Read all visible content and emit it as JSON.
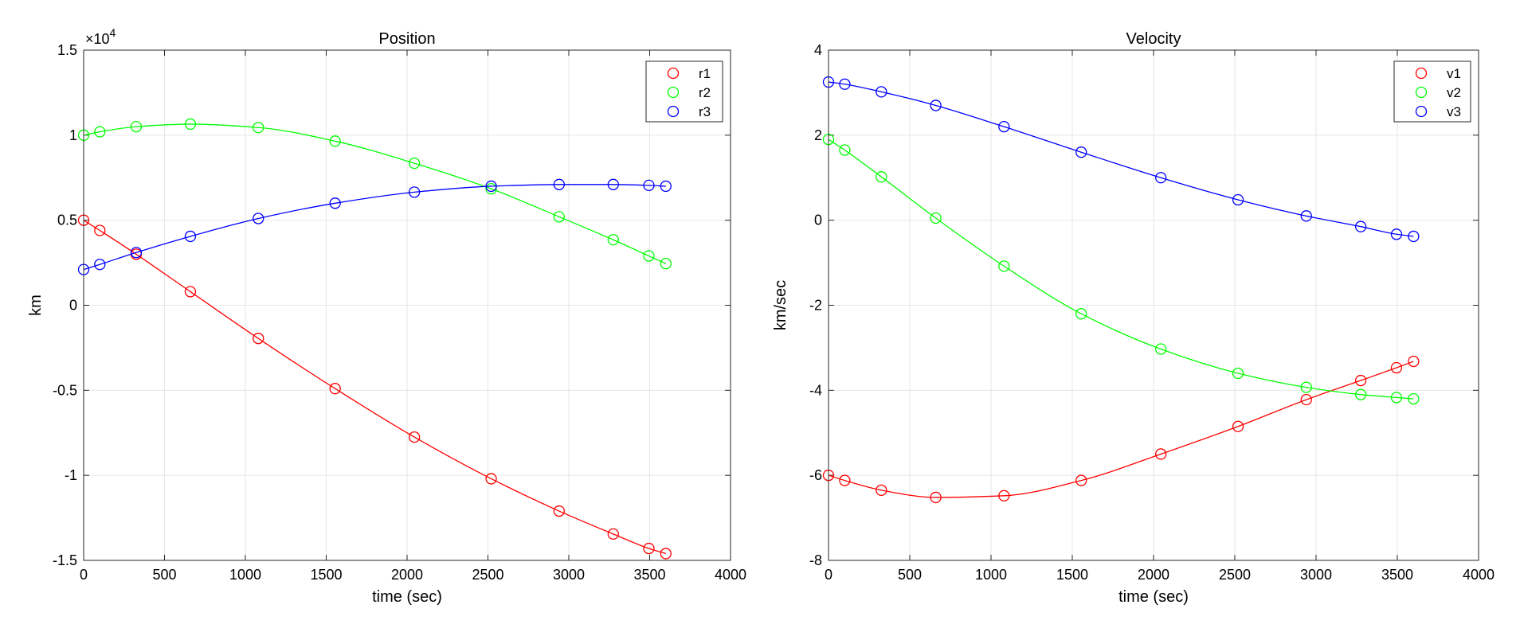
{
  "chart_data": [
    {
      "type": "line",
      "title": "Position",
      "xlabel": "time (sec)",
      "ylabel": "km",
      "exponent_label": "×10",
      "exponent_power": "4",
      "xlim": [
        0,
        4000
      ],
      "ylim": [
        -15000,
        15000
      ],
      "xticks": [
        0,
        500,
        1000,
        1500,
        2000,
        2500,
        3000,
        3500,
        4000
      ],
      "xtick_labels": [
        "0",
        "500",
        "1000",
        "1500",
        "2000",
        "2500",
        "3000",
        "3500",
        "4000"
      ],
      "yticks": [
        -15000,
        -10000,
        -5000,
        0,
        5000,
        10000,
        15000
      ],
      "ytick_labels": [
        "-1.5",
        "-1",
        "-0.5",
        "0",
        "0.5",
        "1",
        "1.5"
      ],
      "grid": true,
      "legend": "top-right",
      "markers_x": [
        0,
        100,
        325,
        660,
        1080,
        1555,
        2045,
        2520,
        2940,
        3275,
        3495,
        3600
      ],
      "series": [
        {
          "name": "r1",
          "color": "#ff0000",
          "x": [
            0,
            100,
            325,
            660,
            1080,
            1555,
            2045,
            2520,
            2940,
            3275,
            3495,
            3600
          ],
          "y": [
            5000,
            4400,
            3000,
            800,
            -1950,
            -4900,
            -7750,
            -10200,
            -12100,
            -13450,
            -14300,
            -14600
          ]
        },
        {
          "name": "r2",
          "color": "#00ff00",
          "x": [
            0,
            100,
            325,
            660,
            1080,
            1555,
            2045,
            2520,
            2940,
            3275,
            3495,
            3600
          ],
          "y": [
            10000,
            10200,
            10500,
            10650,
            10450,
            9650,
            8350,
            6850,
            5200,
            3850,
            2900,
            2450
          ]
        },
        {
          "name": "r3",
          "color": "#0000ff",
          "x": [
            0,
            100,
            325,
            660,
            1080,
            1555,
            2045,
            2520,
            2940,
            3275,
            3495,
            3600
          ],
          "y": [
            2100,
            2400,
            3100,
            4050,
            5100,
            6000,
            6650,
            7000,
            7100,
            7100,
            7050,
            7000
          ]
        }
      ]
    },
    {
      "type": "line",
      "title": "Velocity",
      "xlabel": "time (sec)",
      "ylabel": "km/sec",
      "xlim": [
        0,
        4000
      ],
      "ylim": [
        -8,
        4
      ],
      "xticks": [
        0,
        500,
        1000,
        1500,
        2000,
        2500,
        3000,
        3500,
        4000
      ],
      "xtick_labels": [
        "0",
        "500",
        "1000",
        "1500",
        "2000",
        "2500",
        "3000",
        "3500",
        "4000"
      ],
      "yticks": [
        -8,
        -6,
        -4,
        -2,
        0,
        2,
        4
      ],
      "ytick_labels": [
        "-8",
        "-6",
        "-4",
        "-2",
        "0",
        "2",
        "4"
      ],
      "grid": true,
      "legend": "top-right",
      "series": [
        {
          "name": "v1",
          "color": "#ff0000",
          "x": [
            0,
            100,
            325,
            660,
            1080,
            1555,
            2045,
            2520,
            2940,
            3275,
            3495,
            3600
          ],
          "y": [
            -6.0,
            -6.12,
            -6.35,
            -6.52,
            -6.48,
            -6.12,
            -5.5,
            -4.85,
            -4.22,
            -3.77,
            -3.47,
            -3.32
          ]
        },
        {
          "name": "v2",
          "color": "#00ff00",
          "x": [
            0,
            100,
            325,
            660,
            1080,
            1555,
            2045,
            2520,
            2940,
            3275,
            3495,
            3600
          ],
          "y": [
            1.9,
            1.65,
            1.02,
            0.05,
            -1.08,
            -2.2,
            -3.03,
            -3.6,
            -3.93,
            -4.1,
            -4.17,
            -4.2
          ]
        },
        {
          "name": "v3",
          "color": "#0000ff",
          "x": [
            0,
            100,
            325,
            660,
            1080,
            1555,
            2045,
            2520,
            2940,
            3275,
            3495,
            3600
          ],
          "y": [
            3.25,
            3.2,
            3.02,
            2.7,
            2.2,
            1.6,
            1.0,
            0.48,
            0.1,
            -0.15,
            -0.33,
            -0.38
          ]
        }
      ]
    }
  ]
}
